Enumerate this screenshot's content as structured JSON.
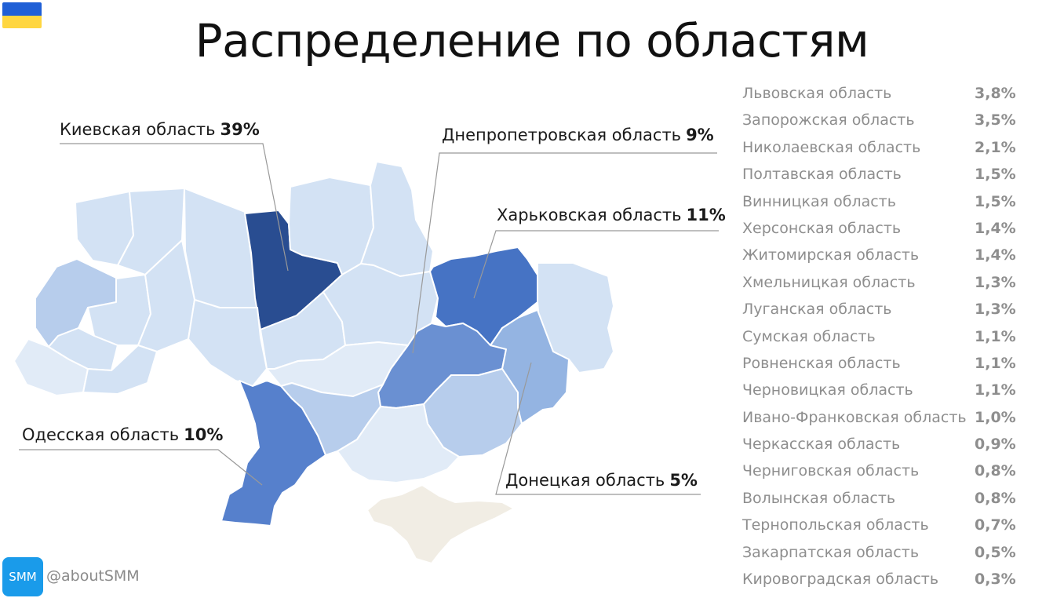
{
  "title": "Распределение по областям",
  "flag": {
    "top_color": "#1f5fd6",
    "bottom_color": "#ffd640"
  },
  "colors": {
    "kyiv": "#294d91",
    "kharkiv": "#4673c4",
    "odesa": "#5680cc",
    "dnipro": "#6a90d2",
    "donetsk": "#94b4e2",
    "mid": "#b7cdec",
    "light": "#d3e2f4",
    "lighter": "#e1ebf7",
    "crimea": "#f1ede4",
    "border": "#ffffff",
    "leader": "#999999"
  },
  "callouts": {
    "kyiv": {
      "name": "Киевская область",
      "pct": "39%"
    },
    "dnipro": {
      "name": "Днепропетровская область",
      "pct": "9%"
    },
    "kharkiv": {
      "name": "Харьковская область",
      "pct": "11%"
    },
    "odesa": {
      "name": "Одесская область",
      "pct": "10%"
    },
    "donetsk": {
      "name": "Донецкая область",
      "pct": "5%"
    }
  },
  "regions_list": [
    {
      "name": "Львовская область",
      "pct": "3,8%"
    },
    {
      "name": "Запорожская область",
      "pct": "3,5%"
    },
    {
      "name": "Николаевская область",
      "pct": "2,1%"
    },
    {
      "name": "Полтавская область",
      "pct": "1,5%"
    },
    {
      "name": "Винницкая область",
      "pct": "1,5%"
    },
    {
      "name": "Херсонская область",
      "pct": "1,4%"
    },
    {
      "name": "Житомирская область",
      "pct": "1,4%"
    },
    {
      "name": "Хмельницкая область",
      "pct": "1,3%"
    },
    {
      "name": "Луганская область",
      "pct": "1,3%"
    },
    {
      "name": "Сумская область",
      "pct": "1,1%"
    },
    {
      "name": "Ровненская область",
      "pct": "1,1%"
    },
    {
      "name": "Черновицкая область",
      "pct": "1,1%"
    },
    {
      "name": "Ивано-Франковская область",
      "pct": "1,0%"
    },
    {
      "name": "Черкасская область",
      "pct": "0,9%"
    },
    {
      "name": "Черниговская область",
      "pct": "0,8%"
    },
    {
      "name": "Волынская область",
      "pct": "0,8%"
    },
    {
      "name": "Тернопольская область",
      "pct": "0,7%"
    },
    {
      "name": "Закарпатская область",
      "pct": "0,5%"
    },
    {
      "name": "Кировоградская область",
      "pct": "0,3%"
    }
  ],
  "brand": {
    "logo_text": "SMM",
    "handle": "@aboutSMM",
    "color": "#1a9bea"
  }
}
